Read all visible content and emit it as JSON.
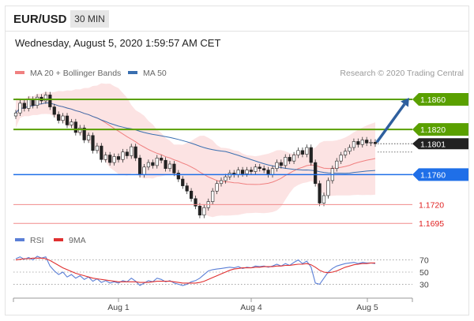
{
  "header": {
    "symbol": "EUR/USD",
    "timeframe": "30 MIN"
  },
  "timestamp": "Wednesday, August 5, 2020 1:59:57 AM CET",
  "legend": {
    "bollinger": {
      "label": "MA 20 + Bollinger Bands",
      "color": "#f08080"
    },
    "ma50": {
      "label": "MA 50",
      "color": "#3a6fb0"
    },
    "credit": "Research © 2020 Trading Central"
  },
  "rsi_legend": {
    "rsi": {
      "label": "RSI",
      "color": "#5b7fd6"
    },
    "ma9": {
      "label": "9MA",
      "color": "#e03030"
    }
  },
  "chart_data": [
    {
      "type": "candlestick",
      "title": "EUR/USD 30 MIN",
      "y_range": [
        1.169,
        1.188
      ],
      "x_labels": [
        "Aug 1",
        "Aug 4",
        "Aug 5"
      ],
      "levels": [
        {
          "value": 1.186,
          "label": "1.1860",
          "kind": "resistance",
          "color": "#5aa000"
        },
        {
          "value": 1.182,
          "label": "1.1820",
          "kind": "resistance",
          "color": "#5aa000"
        },
        {
          "value": 1.1801,
          "label": "1.1801",
          "kind": "last-price",
          "color": "#222222"
        },
        {
          "value": 1.176,
          "label": "1.1760",
          "kind": "pivot",
          "color": "#1f6fe8"
        },
        {
          "value": 1.172,
          "label": "1.1720",
          "kind": "support",
          "color": "#e02020"
        },
        {
          "value": 1.1695,
          "label": "1.1695",
          "kind": "support",
          "color": "#e02020"
        }
      ],
      "forecast_arrow": {
        "from": 1.1803,
        "to": 1.186,
        "color": "#2e5f9e"
      },
      "series": [
        {
          "name": "MA 20 + Bollinger Bands",
          "color": "#f08080"
        },
        {
          "name": "MA 50",
          "color": "#3a6fb0"
        }
      ],
      "closes": [
        1.1842,
        1.1855,
        1.1848,
        1.186,
        1.1852,
        1.1863,
        1.1858,
        1.1866,
        1.185,
        1.184,
        1.1832,
        1.1838,
        1.1826,
        1.183,
        1.1816,
        1.1822,
        1.1806,
        1.1812,
        1.1792,
        1.1798,
        1.178,
        1.1786,
        1.1776,
        1.1784,
        1.178,
        1.179,
        1.1785,
        1.1797,
        1.1782,
        1.176,
        1.177,
        1.1776,
        1.1772,
        1.1782,
        1.1779,
        1.1768,
        1.1774,
        1.1762,
        1.1754,
        1.1745,
        1.1738,
        1.1728,
        1.1718,
        1.1706,
        1.1716,
        1.1724,
        1.1738,
        1.1748,
        1.1752,
        1.1757,
        1.1762,
        1.176,
        1.1766,
        1.1761,
        1.1766,
        1.1764,
        1.177,
        1.1768,
        1.1766,
        1.176,
        1.1768,
        1.1776,
        1.1772,
        1.1783,
        1.1778,
        1.1786,
        1.1792,
        1.1787,
        1.1796,
        1.1776,
        1.1748,
        1.1722,
        1.1732,
        1.1752,
        1.1768,
        1.1778,
        1.1786,
        1.1791,
        1.1796,
        1.1804,
        1.18,
        1.1806,
        1.1802,
        1.1803,
        1.1801
      ]
    },
    {
      "type": "line",
      "title": "RSI",
      "y_ticks": [
        70,
        50,
        30
      ],
      "y_range": [
        15,
        85
      ],
      "series": [
        {
          "name": "RSI",
          "color": "#5b7fd6",
          "values": [
            72,
            75,
            71,
            74,
            70,
            76,
            73,
            75,
            60,
            52,
            46,
            50,
            42,
            46,
            40,
            44,
            38,
            42,
            35,
            39,
            33,
            36,
            32,
            34,
            32,
            36,
            34,
            40,
            35,
            28,
            32,
            36,
            34,
            40,
            38,
            34,
            36,
            32,
            30,
            28,
            30,
            34,
            36,
            40,
            46,
            52,
            54,
            55,
            56,
            57,
            58,
            57,
            59,
            56,
            58,
            57,
            60,
            59,
            60,
            58,
            60,
            63,
            60,
            64,
            61,
            66,
            70,
            64,
            68,
            58,
            32,
            30,
            40,
            50,
            56,
            60,
            62,
            64,
            65,
            66,
            64,
            66,
            65,
            65,
            64
          ]
        },
        {
          "name": "9MA",
          "color": "#e03030",
          "values": [
            70,
            71,
            72,
            72,
            73,
            73,
            73,
            72,
            69,
            65,
            61,
            57,
            54,
            51,
            48,
            46,
            44,
            42,
            40,
            39,
            38,
            37,
            36,
            35,
            34,
            34,
            34,
            34,
            34,
            33,
            33,
            33,
            34,
            35,
            35,
            35,
            35,
            34,
            33,
            32,
            32,
            32,
            32,
            33,
            35,
            38,
            41,
            44,
            47,
            50,
            53,
            55,
            56,
            57,
            57,
            57,
            58,
            58,
            59,
            59,
            59,
            60,
            60,
            61,
            61,
            62,
            63,
            63,
            64,
            62,
            58,
            53,
            50,
            49,
            50,
            52,
            55,
            58,
            60,
            62,
            63,
            64,
            64,
            65,
            65
          ]
        }
      ]
    }
  ]
}
